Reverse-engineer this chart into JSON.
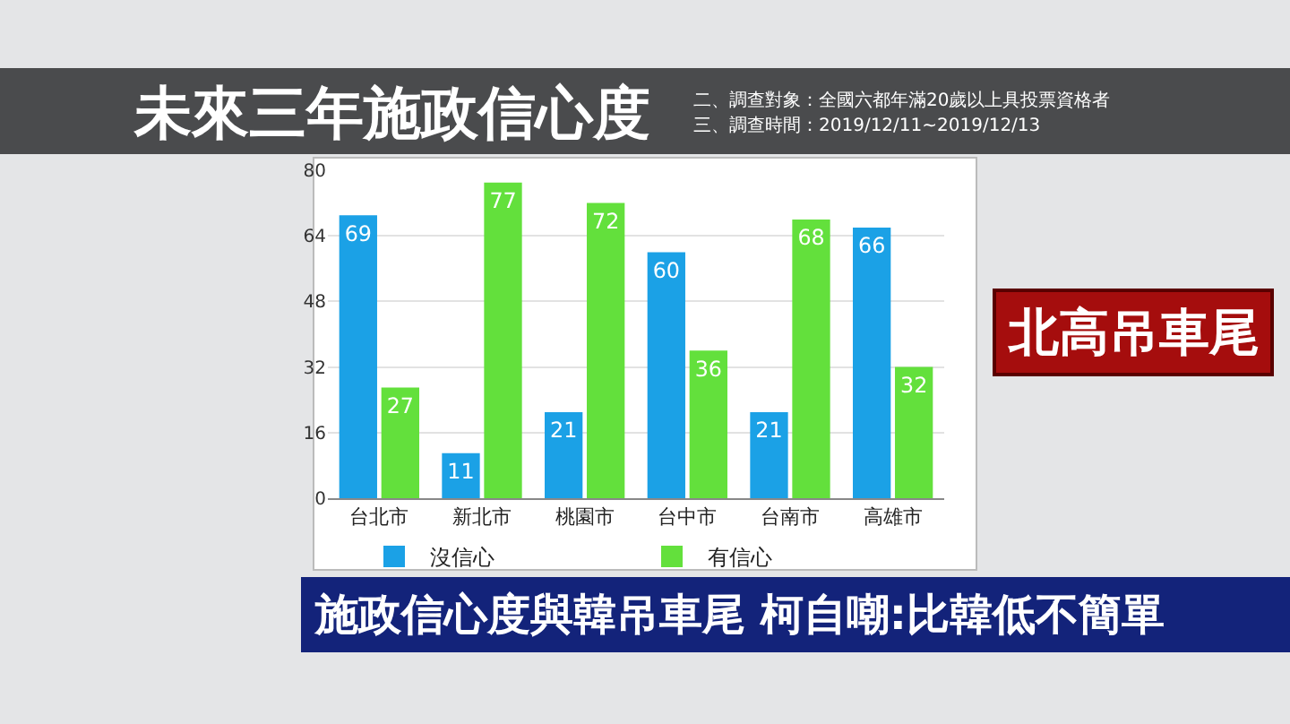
{
  "chart_data": {
    "type": "bar",
    "title": "未來三年施政信心度",
    "subtitle": "二、調查對象：全國六都年滿20歲以上具投票資格者",
    "categories": [
      "台北市",
      "新北市",
      "桃園市",
      "台中市",
      "台南市",
      "高雄市"
    ],
    "series": [
      {
        "name": "沒信心",
        "color": "#1ba1e6",
        "values": [
          69,
          11,
          21,
          60,
          21,
          66
        ]
      },
      {
        "name": "有信心",
        "color": "#63e03c",
        "values": [
          27,
          77,
          72,
          36,
          68,
          32
        ]
      }
    ],
    "ylim": [
      0,
      80
    ],
    "yticks": [
      0,
      16,
      32,
      48,
      64,
      80
    ],
    "grid": "y",
    "legend": "bottom",
    "data_labels": true,
    "annotations": [
      "三、調查時間：2019/12/11~2019/12/13",
      "北高吊車尾",
      "施政信心度與韓吊車尾 柯自嘲:比韓低不簡單"
    ]
  }
}
